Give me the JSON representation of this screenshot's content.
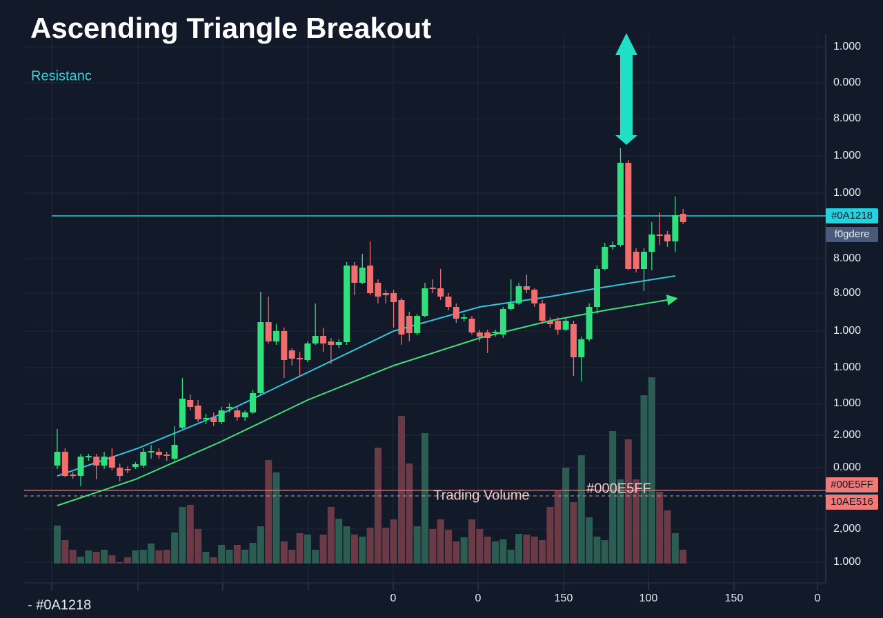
{
  "chart_data": {
    "type": "candlestick",
    "title": "Ascending Triangle Breakout",
    "annotations": {
      "resistance": "Resistanc",
      "volume_label": "Trading Volume",
      "volume_code": "#000E5FF",
      "footer": "- #0A1218"
    },
    "price_tags": [
      {
        "label": "#0A1218",
        "color": "#22d3e0"
      },
      {
        "label": "f0gdere",
        "color": "#4a5a7a"
      },
      {
        "label": "#00E5FF",
        "color": "#f07a78"
      },
      {
        "label": "10AE516",
        "color": "#f07a78"
      }
    ],
    "y_axis_labels": [
      "1.000",
      "0.000",
      "8.000",
      "1.000",
      "1.000",
      "8.000",
      "8.000",
      "1.000",
      "1.000",
      "1.000",
      "2.000",
      "0.000",
      "2,000",
      "1.000"
    ],
    "x_axis_labels": [
      null,
      null,
      null,
      null,
      "0",
      "0",
      "150",
      "100",
      "150",
      "0"
    ],
    "ylim": [
      0,
      850
    ],
    "volume_ylim": [
      0,
      300
    ],
    "resistance_level": 537,
    "up_color": "#2fe07c",
    "down_color": "#f26d6d",
    "volume_up_color": "#2b5d53",
    "volume_down_color": "#6b3a47",
    "candles": {
      "open": [
        175,
        195,
        162,
        160,
        187,
        188,
        175,
        188,
        172,
        170,
        173,
        175,
        194,
        195,
        191,
        185,
        230,
        270,
        262,
        242,
        245,
        238,
        258,
        255,
        245,
        252,
        280,
        383,
        355,
        370,
        342,
        331,
        328,
        352,
        363,
        355,
        350,
        354,
        465,
        440,
        465,
        440,
        425,
        425,
        415,
        392,
        367,
        392,
        433,
        432,
        420,
        405,
        388,
        388,
        368,
        368,
        367,
        365,
        402,
        410,
        435,
        430,
        410,
        385,
        385,
        372,
        380,
        332,
        358,
        405,
        460,
        492,
        495,
        614,
        485,
        460,
        485,
        510,
        510,
        500,
        540
      ],
      "high": [
        228,
        200,
        166,
        192,
        192,
        192,
        195,
        200,
        178,
        174,
        180,
        200,
        205,
        200,
        195,
        232,
        302,
        278,
        270,
        250,
        252,
        260,
        265,
        260,
        255,
        285,
        427,
        420,
        380,
        375,
        345,
        340,
        355,
        410,
        375,
        360,
        358,
        470,
        470,
        482,
        500,
        445,
        430,
        430,
        418,
        398,
        395,
        440,
        445,
        460,
        425,
        410,
        395,
        392,
        372,
        372,
        372,
        405,
        445,
        440,
        452,
        432,
        415,
        390,
        390,
        390,
        385,
        362,
        410,
        465,
        498,
        500,
        635,
        618,
        490,
        490,
        528,
        542,
        515,
        565,
        547
      ],
      "low": [
        170,
        158,
        156,
        145,
        182,
        155,
        170,
        168,
        152,
        164,
        170,
        172,
        185,
        185,
        182,
        182,
        228,
        255,
        238,
        235,
        232,
        235,
        252,
        240,
        240,
        250,
        278,
        352,
        350,
        302,
        320,
        305,
        325,
        350,
        340,
        322,
        345,
        350,
        422,
        438,
        422,
        410,
        410,
        375,
        350,
        355,
        364,
        390,
        425,
        415,
        400,
        382,
        384,
        365,
        355,
        338,
        362,
        360,
        400,
        408,
        425,
        405,
        380,
        375,
        365,
        370,
        305,
        297,
        355,
        395,
        458,
        488,
        492,
        458,
        455,
        428,
        458,
        495,
        492,
        485,
        525
      ],
      "close": [
        195,
        160,
        160,
        188,
        189,
        175,
        188,
        172,
        160,
        168,
        177,
        195,
        196,
        190,
        189,
        205,
        272,
        260,
        242,
        244,
        238,
        255,
        260,
        245,
        252,
        280,
        383,
        355,
        370,
        328,
        330,
        329,
        352,
        363,
        352,
        350,
        354,
        465,
        440,
        462,
        425,
        420,
        422,
        412,
        365,
        367,
        392,
        432,
        431,
        420,
        405,
        388,
        390,
        368,
        362,
        360,
        369,
        402,
        410,
        435,
        430,
        410,
        385,
        380,
        372,
        385,
        332,
        358,
        405,
        460,
        492,
        495,
        614,
        460,
        460,
        485,
        510,
        508,
        500,
        538,
        528
      ],
      "volume": [
        55,
        34,
        20,
        10,
        19,
        17,
        20,
        12,
        2,
        9,
        19,
        20,
        29,
        19,
        20,
        45,
        82,
        85,
        50,
        17,
        9,
        27,
        20,
        27,
        20,
        30,
        54,
        150,
        132,
        32,
        20,
        44,
        42,
        20,
        42,
        82,
        65,
        54,
        42,
        39,
        52,
        168,
        52,
        64,
        214,
        145,
        54,
        189,
        50,
        64,
        49,
        32,
        38,
        64,
        50,
        39,
        32,
        35,
        20,
        43,
        42,
        39,
        34,
        82,
        105,
        139,
        89,
        157,
        67,
        39,
        34,
        192,
        122,
        180,
        122,
        244,
        270,
        104,
        77,
        44,
        20
      ]
    },
    "moving_averages": [
      {
        "color": "#2fc6e0",
        "x": [
          0,
          10.3,
          21,
          32,
          43,
          54,
          63,
          69,
          79
        ],
        "values": [
          160,
          200,
          250,
          310,
          370,
          405,
          420,
          432,
          450
        ]
      },
      {
        "color": "#3fe07a",
        "x": [
          0,
          10,
          21,
          32,
          43,
          54,
          63,
          70,
          79
        ],
        "values": [
          117,
          155,
          210,
          270,
          320,
          360,
          385,
          400,
          417
        ]
      }
    ]
  }
}
